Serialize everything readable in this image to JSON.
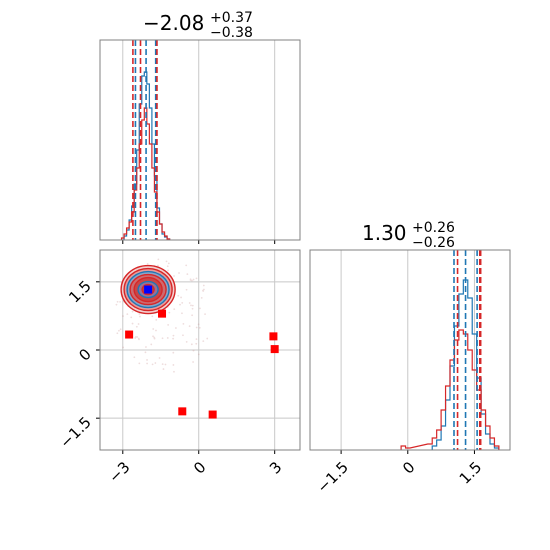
{
  "colors": {
    "blue": "#1f77b4",
    "red": "#d62728",
    "grid": "#c8c8c8",
    "frame": "#808080",
    "marker_red": "#ff0000",
    "marker_blue": "#0000ff"
  },
  "chart_data": [
    {
      "type": "histogram",
      "panel": "top-left",
      "title": {
        "value": "−2.08",
        "plus": "+0.37",
        "minus": "−0.38"
      },
      "xlim": [
        -3.9,
        4.0
      ],
      "xticks": [
        -3,
        0,
        3
      ],
      "vlines_blue": [
        -2.5,
        -2.08,
        -1.7
      ],
      "vlines_red": [
        -2.6,
        -2.3,
        -1.65
      ],
      "series": [
        {
          "name": "",
          "color": "blue",
          "x": [
            -2.9,
            -2.8,
            -2.7,
            -2.6,
            -2.5,
            -2.4,
            -2.3,
            -2.2,
            -2.1,
            -2.0,
            -1.9,
            -1.8,
            -1.7,
            -1.6,
            -1.5,
            -1.4,
            -1.3,
            -1.2
          ],
          "values": [
            0.02,
            0.05,
            0.1,
            0.17,
            0.28,
            0.45,
            0.68,
            0.82,
            0.84,
            0.78,
            0.66,
            0.48,
            0.32,
            0.16,
            0.08,
            0.03,
            0.015,
            0.005
          ]
        },
        {
          "name": "",
          "color": "red",
          "x": [
            -3.0,
            -2.9,
            -2.8,
            -2.7,
            -2.6,
            -2.5,
            -2.4,
            -2.3,
            -2.2,
            -2.1,
            -2.0,
            -1.9,
            -1.8,
            -1.7,
            -1.6,
            -1.5,
            -1.4,
            -1.3,
            -1.2
          ],
          "values": [
            0.01,
            0.03,
            0.06,
            0.09,
            0.14,
            0.25,
            0.36,
            0.48,
            0.6,
            0.66,
            0.58,
            0.48,
            0.36,
            0.24,
            0.14,
            0.08,
            0.04,
            0.02,
            0.005
          ]
        }
      ]
    },
    {
      "type": "scatter",
      "panel": "bottom-left",
      "xlim": [
        -3.9,
        4.0
      ],
      "ylim": [
        -2.2,
        2.2
      ],
      "xticks": [
        -3,
        0,
        3
      ],
      "yticks": [
        -1.5,
        0.0,
        1.5
      ],
      "density_center": [
        -2.0,
        1.33
      ],
      "points_red": [
        [
          -2.75,
          0.34
        ],
        [
          -1.45,
          0.8
        ],
        [
          -0.65,
          -1.35
        ],
        [
          0.55,
          -1.42
        ],
        [
          2.95,
          0.3
        ],
        [
          3.0,
          0.02
        ]
      ],
      "points_blue": [
        [
          -2.0,
          1.33
        ]
      ]
    },
    {
      "type": "histogram",
      "panel": "bottom-right",
      "title": {
        "value": "1.30",
        "plus": "+0.26",
        "minus": "−0.26"
      },
      "xlim": [
        -2.2,
        2.3
      ],
      "xticks": [
        -1.5,
        0.0,
        1.5
      ],
      "vlines_blue": [
        1.04,
        1.3,
        1.56
      ],
      "vlines_red": [
        1.12,
        1.62,
        1.64
      ],
      "series": [
        {
          "name": "",
          "color": "blue",
          "x": [
            0.6,
            0.7,
            0.8,
            0.9,
            1.0,
            1.1,
            1.2,
            1.3,
            1.4,
            1.5,
            1.6,
            1.7,
            1.8,
            1.9,
            2.0
          ],
          "values": [
            0.02,
            0.05,
            0.12,
            0.25,
            0.42,
            0.62,
            0.78,
            0.85,
            0.76,
            0.58,
            0.36,
            0.18,
            0.08,
            0.03,
            0.01
          ]
        },
        {
          "name": "",
          "color": "red",
          "x": [
            -0.1,
            0.0,
            0.5,
            0.6,
            0.7,
            0.8,
            0.9,
            1.0,
            1.1,
            1.2,
            1.3,
            1.4,
            1.5,
            1.6,
            1.7,
            1.8,
            1.9,
            2.0
          ],
          "values": [
            0.02,
            0.01,
            0.03,
            0.06,
            0.1,
            0.2,
            0.32,
            0.45,
            0.55,
            0.6,
            0.58,
            0.5,
            0.4,
            0.3,
            0.2,
            0.12,
            0.06,
            0.02
          ]
        }
      ]
    }
  ]
}
